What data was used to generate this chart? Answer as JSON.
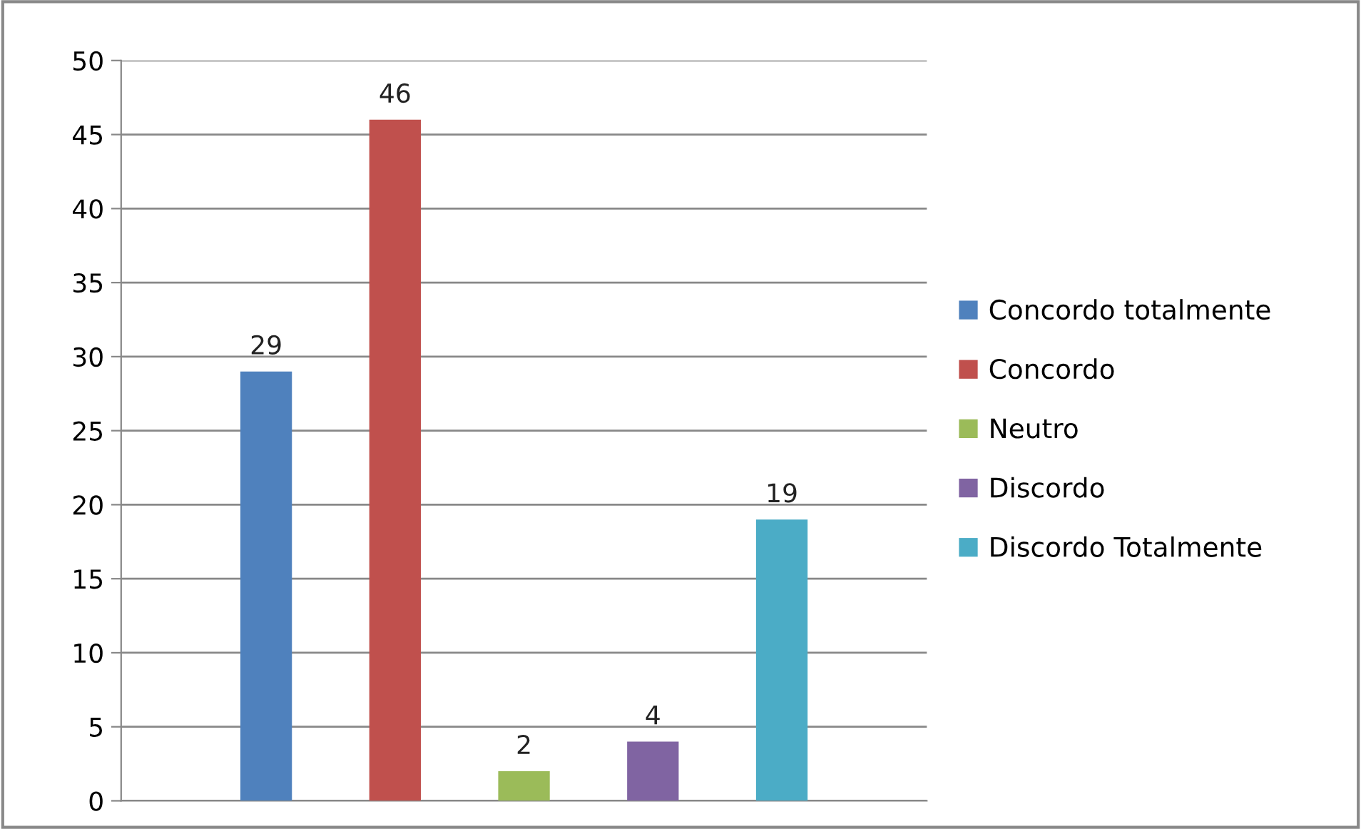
{
  "chart_data": {
    "type": "bar",
    "categories": [
      null
    ],
    "series": [
      {
        "name": "Concordo totalmente",
        "color": "#4f81bd",
        "values": [
          29
        ]
      },
      {
        "name": "Concordo",
        "color": "#c0504d",
        "values": [
          46
        ]
      },
      {
        "name": "Neutro",
        "color": "#9bbb59",
        "values": [
          2
        ]
      },
      {
        "name": "Discordo",
        "color": "#8064a2",
        "values": [
          4
        ]
      },
      {
        "name": "Discordo Totalmente",
        "color": "#4bacc6",
        "values": [
          19
        ]
      }
    ],
    "ylim": [
      0,
      50
    ],
    "yticks": [
      0,
      5,
      10,
      15,
      20,
      25,
      30,
      35,
      40,
      45,
      50
    ],
    "grid": "y",
    "legend": "right",
    "data_labels": true
  }
}
